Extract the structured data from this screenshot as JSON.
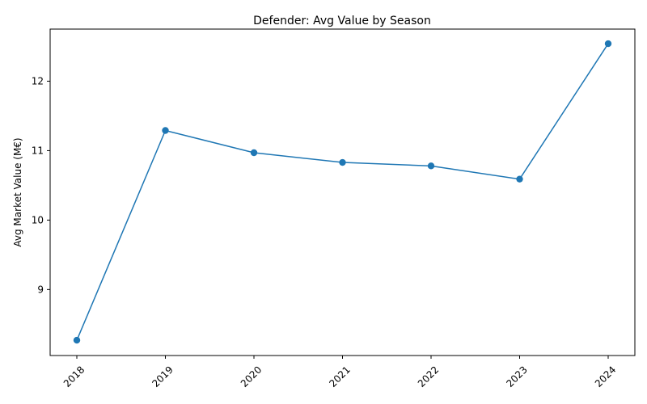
{
  "chart_data": {
    "type": "line",
    "title": "Defender: Avg Value by Season",
    "xlabel": "",
    "ylabel": "Avg Market Value (M€)",
    "x": [
      "2018",
      "2019",
      "2020",
      "2021",
      "2022",
      "2023",
      "2024"
    ],
    "series": [
      {
        "values": [
          8.27,
          11.29,
          10.97,
          10.83,
          10.78,
          10.59,
          12.54
        ]
      }
    ],
    "y_ticks": [
      9,
      10,
      11,
      12
    ],
    "ylim": [
      8.05,
      12.75
    ],
    "grid": false,
    "legend": "none",
    "x_tick_rotation": "45 degrees",
    "line_color": "#1f77b4",
    "marker": "circle"
  }
}
